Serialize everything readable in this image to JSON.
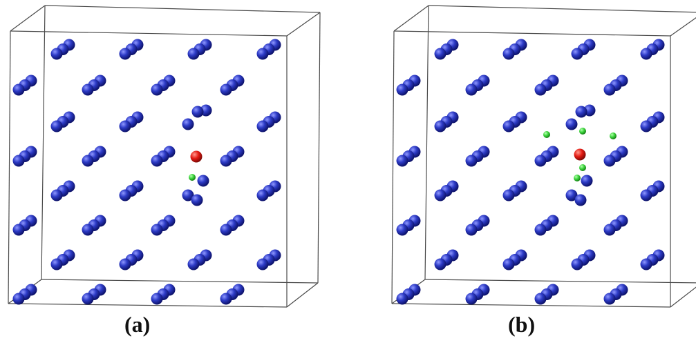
{
  "panels": [
    {
      "id": "a",
      "label": "(a)"
    },
    {
      "id": "b",
      "label": "(b)"
    }
  ],
  "colors": {
    "background": "#ffffff",
    "box_edge": "#4a4a4a",
    "host_atom": "#2d3bc6",
    "host_atom_highlight": "#8f98ff",
    "host_atom_shadow": "#0b1066",
    "defect_atom": "#e41b13",
    "defect_atom_highlight": "#ff9a8e",
    "small_atom": "#3dd63d",
    "small_atom_highlight": "#b6ffb0"
  }
}
